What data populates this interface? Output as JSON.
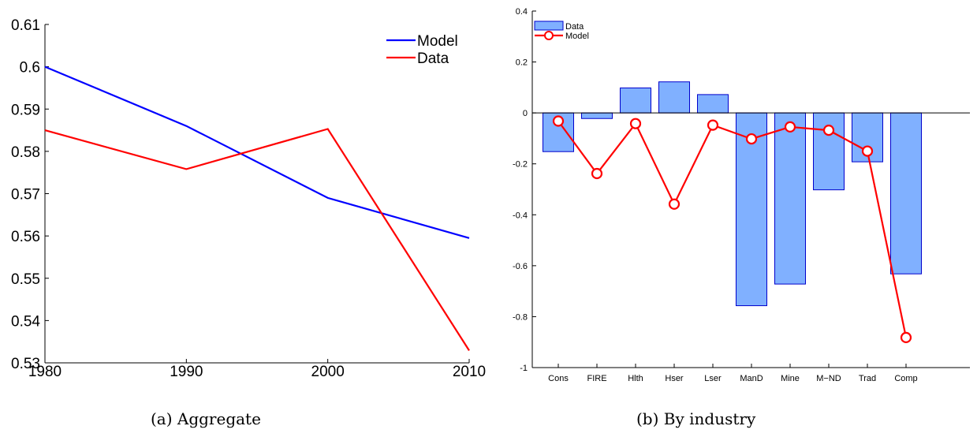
{
  "chart_data": [
    {
      "type": "line",
      "caption": "(a) Aggregate",
      "x": [
        1980,
        1990,
        2000,
        2010
      ],
      "xlim": [
        1980,
        2010
      ],
      "ylim": [
        0.53,
        0.61
      ],
      "x_ticks": [
        "1980",
        "1990",
        "2000",
        "2010"
      ],
      "y_ticks": [
        "0.53",
        "0.54",
        "0.55",
        "0.56",
        "0.57",
        "0.58",
        "0.59",
        "0.6",
        "0.61"
      ],
      "legend_position": "top-right",
      "grid": false,
      "series": [
        {
          "name": "Model",
          "color": "#0000ff",
          "values": [
            0.6,
            0.586,
            0.569,
            0.5595
          ]
        },
        {
          "name": "Data",
          "color": "#ff0000",
          "values": [
            0.585,
            0.5758,
            0.5853,
            0.5329
          ]
        }
      ]
    },
    {
      "type": "bar",
      "caption": "(b) By industry",
      "categories": [
        "Cons",
        "FIRE",
        "Hlth",
        "Hser",
        "Lser",
        "ManD",
        "Mine",
        "M−ND",
        "Trad",
        "Comp"
      ],
      "ylim": [
        -1,
        0.4
      ],
      "y_ticks": [
        "-1",
        "-0.8",
        "-0.6",
        "-0.4",
        "-0.2",
        "0",
        "0.2",
        "0.4"
      ],
      "legend_position": "top-left",
      "grid": false,
      "series": [
        {
          "name": "Data",
          "kind": "bar",
          "color": "#80b0ff",
          "edge": "#0000cc",
          "values": [
            -0.152,
            -0.022,
            0.098,
            0.122,
            0.072,
            -0.757,
            -0.672,
            -0.302,
            -0.192,
            -0.632
          ]
        },
        {
          "name": "Model",
          "kind": "line-marker",
          "color": "#ff0000",
          "values": [
            -0.032,
            -0.238,
            -0.042,
            -0.358,
            -0.048,
            -0.102,
            -0.055,
            -0.068,
            -0.15,
            -0.882
          ]
        }
      ]
    }
  ]
}
